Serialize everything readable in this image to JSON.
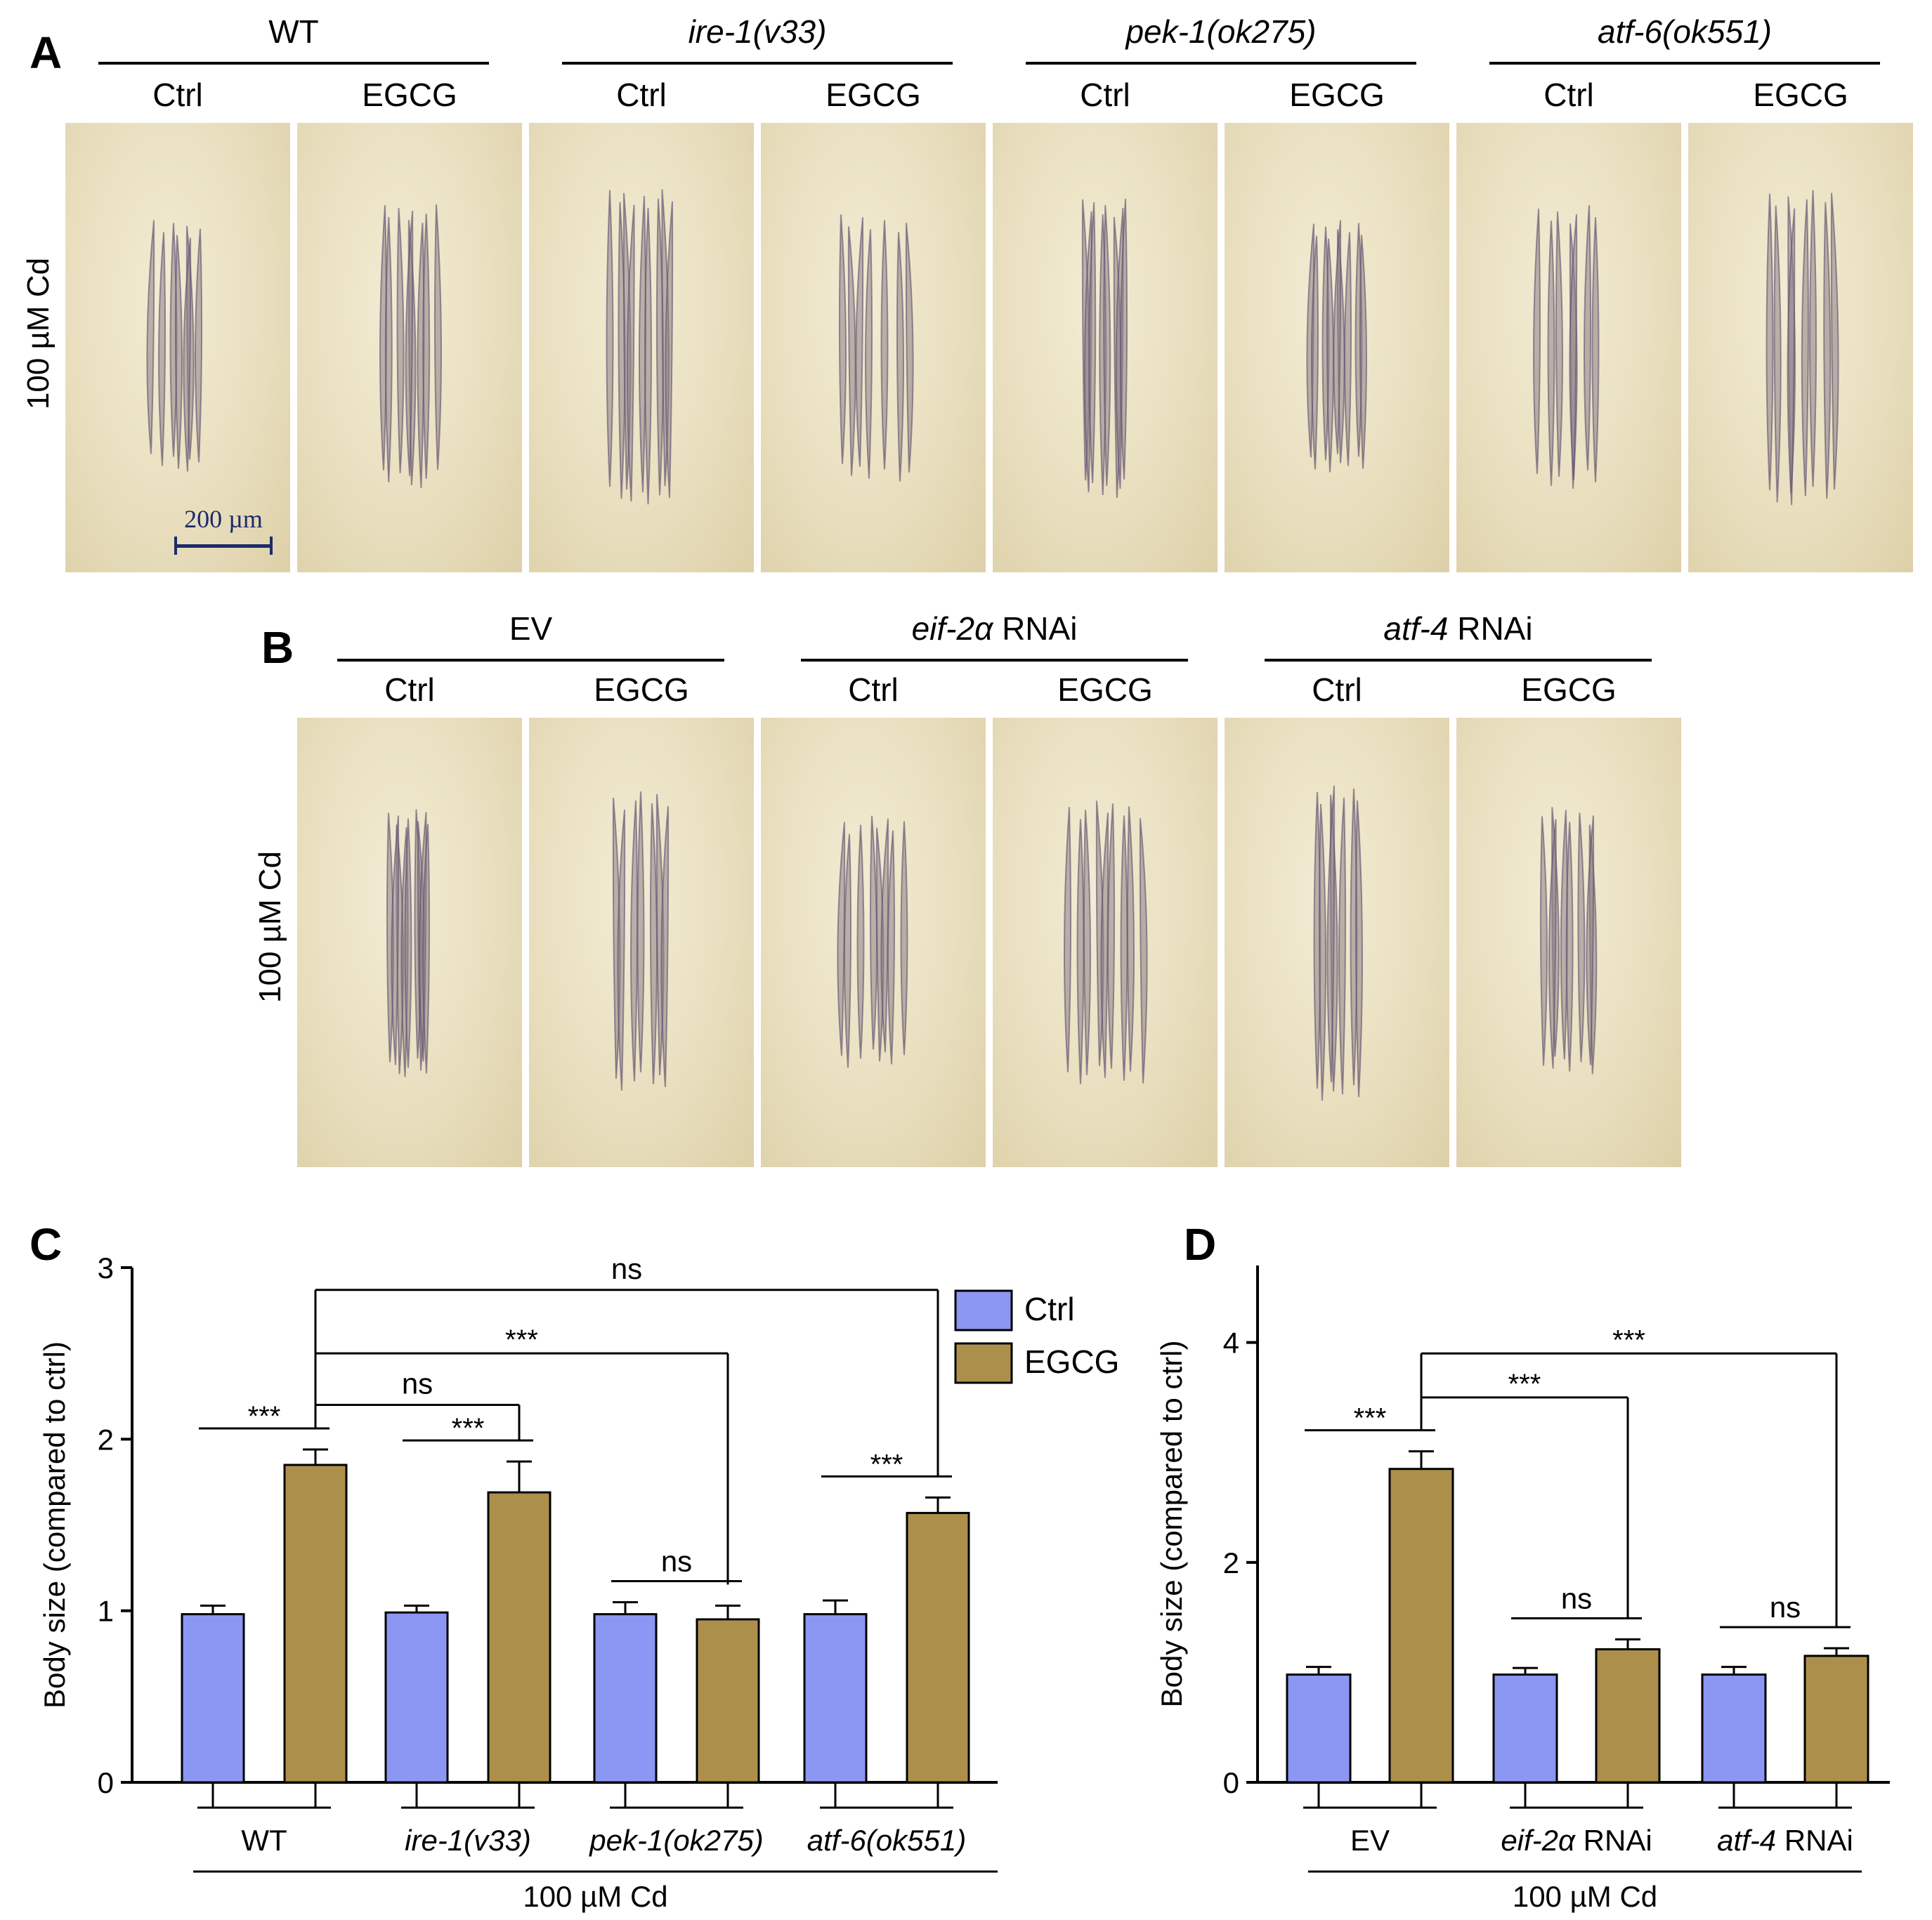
{
  "panelA": {
    "letter": "A",
    "side_label": "100 µM Cd",
    "groups": [
      {
        "pre": "WT",
        "it": "",
        "post": ""
      },
      {
        "pre": "",
        "it": "ire-1(v33)",
        "post": ""
      },
      {
        "pre": "",
        "it": "pek-1(ok275)",
        "post": ""
      },
      {
        "pre": "",
        "it": "atf-6(ok551)",
        "post": ""
      }
    ],
    "sub": [
      "Ctrl",
      "EGCG",
      "Ctrl",
      "EGCG",
      "Ctrl",
      "EGCG",
      "Ctrl",
      "EGCG"
    ],
    "scale_bar": "200 µm"
  },
  "panelB": {
    "letter": "B",
    "side_label": "100 µM Cd",
    "groups": [
      {
        "pre": "EV",
        "it": "",
        "post": ""
      },
      {
        "pre": "",
        "it": "eif-2α",
        "post": " RNAi"
      },
      {
        "pre": "",
        "it": "atf-4",
        "post": " RNAi"
      }
    ],
    "sub": [
      "Ctrl",
      "EGCG",
      "Ctrl",
      "EGCG",
      "Ctrl",
      "EGCG"
    ]
  },
  "chart_data": [
    {
      "panel": "C",
      "type": "bar",
      "ylabel": "Body size (compared to ctrl)",
      "ylim": [
        0,
        3
      ],
      "yticks": [
        0,
        1,
        2,
        3
      ],
      "categories": [
        "WT",
        "ire-1(v33)",
        "pek-1(ok275)",
        "atf-6(ok551)"
      ],
      "italic_categories": [
        false,
        true,
        true,
        true
      ],
      "group_label": "100 µM Cd",
      "series": [
        {
          "name": "Ctrl",
          "color": "#8b97f2",
          "values": [
            0.98,
            0.99,
            0.98,
            0.98
          ],
          "errors": [
            0.05,
            0.04,
            0.07,
            0.08
          ]
        },
        {
          "name": "EGCG",
          "color": "#ad8f4c",
          "values": [
            1.85,
            1.69,
            0.95,
            1.57
          ],
          "errors": [
            0.09,
            0.18,
            0.08,
            0.09
          ]
        }
      ],
      "legend": "right",
      "annotations": [
        {
          "text": "***",
          "type": "pair",
          "group": 0
        },
        {
          "text": "***",
          "type": "pair",
          "group": 1
        },
        {
          "text": "ns",
          "type": "pair",
          "group": 2
        },
        {
          "text": "***",
          "type": "pair",
          "group": 3
        },
        {
          "text": "ns",
          "type": "bracket",
          "from": 0,
          "to": 1,
          "y": 2.2
        },
        {
          "text": "***",
          "type": "bracket",
          "from": 0,
          "to": 2,
          "y": 2.5
        },
        {
          "text": "ns",
          "type": "bracket",
          "from": 0,
          "to": 3,
          "y": 2.87
        }
      ]
    },
    {
      "panel": "D",
      "type": "bar",
      "ylabel": "Body size (compared to ctrl)",
      "ylim": [
        0,
        4.7
      ],
      "yticks": [
        0,
        2,
        4
      ],
      "categories": [
        "EV",
        "eif-2α RNAi",
        "atf-4 RNAi"
      ],
      "category_parts": [
        {
          "it": "",
          "post": "EV"
        },
        {
          "it": "eif-2α",
          "post": " RNAi"
        },
        {
          "it": "atf-4",
          "post": " RNAi"
        }
      ],
      "group_label": "100 µM Cd",
      "series": [
        {
          "name": "Ctrl",
          "color": "#8b97f2",
          "values": [
            0.98,
            0.98,
            0.98
          ],
          "errors": [
            0.07,
            0.06,
            0.07
          ]
        },
        {
          "name": "EGCG",
          "color": "#ad8f4c",
          "values": [
            2.85,
            1.21,
            1.15
          ],
          "errors": [
            0.16,
            0.09,
            0.07
          ]
        }
      ],
      "annotations": [
        {
          "text": "***",
          "type": "pair",
          "group": 0
        },
        {
          "text": "ns",
          "type": "pair",
          "group": 1
        },
        {
          "text": "ns",
          "type": "pair",
          "group": 2
        },
        {
          "text": "***",
          "type": "bracket",
          "from": 0,
          "to": 1,
          "y": 3.5
        },
        {
          "text": "***",
          "type": "bracket",
          "from": 0,
          "to": 2,
          "y": 3.9
        }
      ]
    }
  ]
}
